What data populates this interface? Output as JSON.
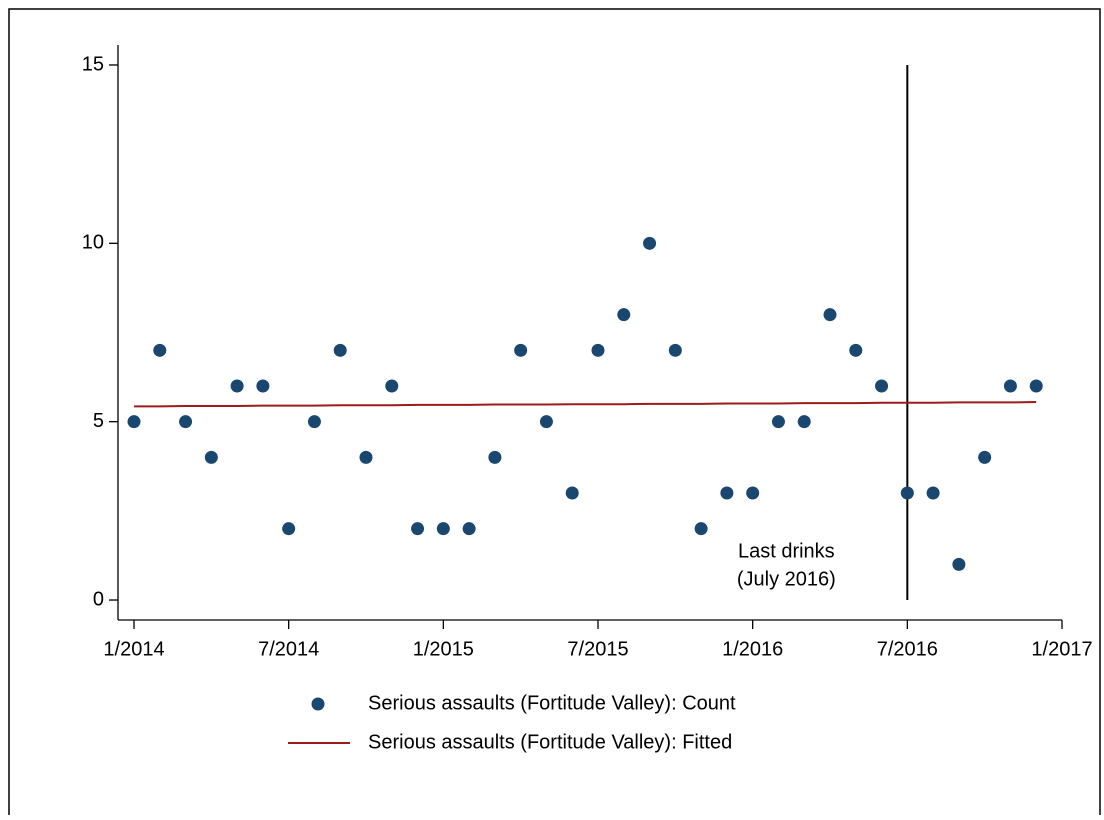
{
  "chart_data": {
    "type": "scatter",
    "x": [
      "2014-01",
      "2014-02",
      "2014-03",
      "2014-04",
      "2014-05",
      "2014-06",
      "2014-07",
      "2014-08",
      "2014-09",
      "2014-10",
      "2014-11",
      "2014-12",
      "2015-01",
      "2015-02",
      "2015-03",
      "2015-04",
      "2015-05",
      "2015-06",
      "2015-07",
      "2015-08",
      "2015-09",
      "2015-10",
      "2015-11",
      "2015-12",
      "2016-01",
      "2016-02",
      "2016-03",
      "2016-04",
      "2016-05",
      "2016-06",
      "2016-07",
      "2016-08",
      "2016-09",
      "2016-10",
      "2016-11",
      "2016-12"
    ],
    "series": [
      {
        "name": "Serious assaults (Fortitude Valley): Count",
        "type": "scatter",
        "color": "#1a476f",
        "values": [
          5,
          7,
          5,
          4,
          6,
          6,
          2,
          5,
          7,
          4,
          6,
          2,
          2,
          2,
          4,
          7,
          5,
          3,
          7,
          8,
          10,
          7,
          2,
          3,
          3,
          5,
          5,
          8,
          7,
          6,
          3,
          3,
          1,
          4,
          6,
          6
        ]
      },
      {
        "name": "Serious assaults (Fortitude Valley): Fitted",
        "type": "line",
        "color": "#9e1b1b",
        "values": [
          5.43,
          5.43,
          5.44,
          5.44,
          5.44,
          5.45,
          5.45,
          5.45,
          5.46,
          5.46,
          5.46,
          5.47,
          5.47,
          5.47,
          5.48,
          5.48,
          5.48,
          5.49,
          5.49,
          5.49,
          5.5,
          5.5,
          5.5,
          5.51,
          5.51,
          5.51,
          5.52,
          5.52,
          5.52,
          5.53,
          5.53,
          5.53,
          5.54,
          5.54,
          5.54,
          5.55
        ]
      }
    ],
    "xlim": [
      "2014-01",
      "2017-01"
    ],
    "xticks": [
      {
        "value": "2014-01",
        "label": "1/2014"
      },
      {
        "value": "2014-07",
        "label": "7/2014"
      },
      {
        "value": "2015-01",
        "label": "1/2015"
      },
      {
        "value": "2015-07",
        "label": "7/2015"
      },
      {
        "value": "2016-01",
        "label": "1/2016"
      },
      {
        "value": "2016-07",
        "label": "7/2016"
      },
      {
        "value": "2017-01",
        "label": "1/2017"
      }
    ],
    "ylim": [
      -0.56,
      15.56
    ],
    "yticks": [
      0,
      5,
      10,
      15
    ],
    "annotation": {
      "x": "2016-07",
      "y": [
        0,
        15
      ],
      "color": "#000000",
      "text": [
        "Last drinks",
        "(July 2016)"
      ]
    },
    "legend": "bottom"
  }
}
